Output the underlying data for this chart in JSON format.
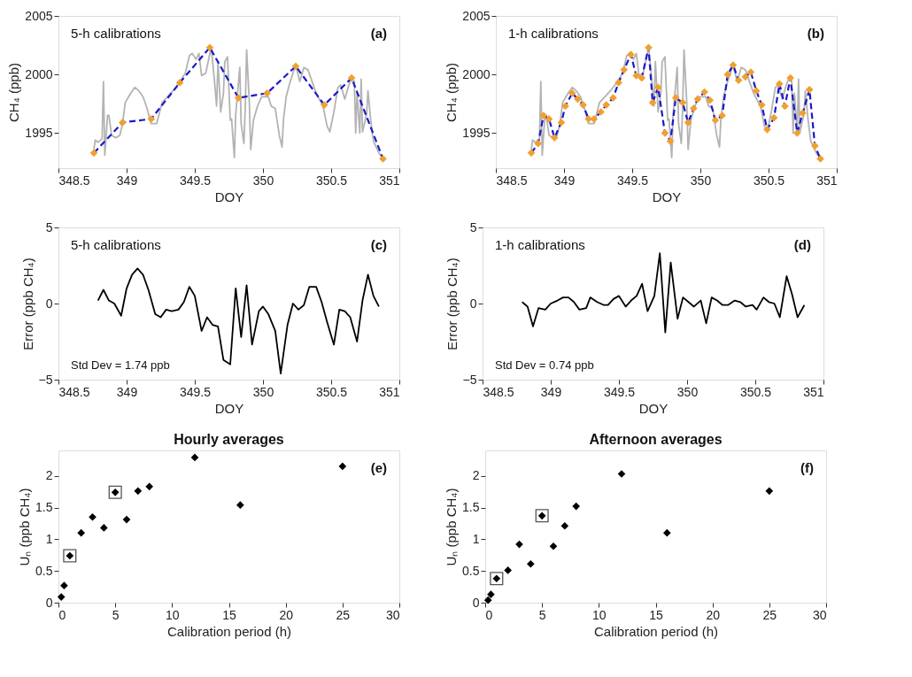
{
  "chart_data": [
    {
      "type": "line",
      "xlabel": "DOY",
      "ylabel": "CH₄ (ppb)",
      "annotations": [
        "5-h calibrations",
        "(a)"
      ],
      "xlim": [
        348.5,
        351
      ],
      "xticks": [
        348.5,
        349,
        349.5,
        350,
        350.5,
        351
      ],
      "ylim": [
        1992,
        2005
      ],
      "yticks": [
        1995,
        2000,
        2005
      ],
      "grid": false,
      "legend": false,
      "series": [
        {
          "color": "#b3b3b3",
          "x": [
            348.76,
            348.77,
            348.79,
            348.82,
            348.83,
            348.84,
            348.86,
            348.87,
            348.89,
            348.92,
            348.95,
            348.97,
            348.99,
            349.03,
            349.06,
            349.09,
            349.12,
            349.15,
            349.18,
            349.22,
            349.26,
            349.3,
            349.34,
            349.38,
            349.43,
            349.46,
            349.48,
            349.51,
            349.53,
            349.55,
            349.58,
            349.62,
            349.64,
            349.66,
            349.67,
            349.69,
            349.71,
            349.72,
            349.74,
            349.76,
            349.77,
            349.79,
            349.8,
            349.83,
            349.84,
            349.86,
            349.87,
            349.88,
            349.9,
            349.91,
            349.93,
            349.96,
            349.99,
            350.04,
            350.06,
            350.09,
            350.12,
            350.14,
            350.15,
            350.17,
            350.2,
            350.24,
            350.27,
            350.3,
            350.33,
            350.36,
            350.39,
            350.44,
            350.47,
            350.49,
            350.52,
            350.55,
            350.57,
            350.6,
            350.63,
            350.65,
            350.67,
            350.68,
            350.69,
            350.71,
            350.72,
            350.73,
            350.76,
            350.77,
            350.79,
            350.81,
            350.85,
            350.88
          ],
          "values": [
            1993.6,
            1994.4,
            1994.2,
            1994.5,
            1999.4,
            1993.1,
            1996.5,
            1996.5,
            1994.8,
            1994.6,
            1994.8,
            1995.8,
            1997.6,
            1998.4,
            1998.9,
            1998.6,
            1998.1,
            1997.1,
            1995.8,
            1995.8,
            1997.6,
            1998.1,
            1998.6,
            1999.2,
            2000.1,
            2001.6,
            2001.8,
            2001.3,
            2001.8,
            1999.9,
            2000.1,
            2002.3,
            2000.0,
            1997.3,
            2001.1,
            1996.8,
            1998.4,
            2001.1,
            2001.5,
            1996.1,
            1996.2,
            1992.9,
            1996.6,
            2000.6,
            1995.8,
            1994.1,
            1997.1,
            2002.1,
            1997.6,
            1993.6,
            1996.1,
            1997.3,
            1998.1,
            1998.1,
            1997.3,
            1997.1,
            1994.8,
            1993.8,
            1996.1,
            1998.1,
            1999.4,
            2000.8,
            1999.4,
            2000.6,
            2000.4,
            1999.4,
            1998.4,
            1997.3,
            1995.6,
            1995.1,
            1996.8,
            1998.9,
            1999.1,
            1997.9,
            1999.1,
            1999.7,
            1999.4,
            1995.0,
            1998.4,
            1995.0,
            1999.6,
            1995.1,
            1996.6,
            1998.6,
            1996.1,
            1994.3,
            1993.3,
            1992.8
          ]
        },
        {
          "color": "#1a1acc",
          "line_style": "dashed",
          "x": [
            348.76,
            348.97,
            349.18,
            349.39,
            349.61,
            349.82,
            350.03,
            350.24,
            350.45,
            350.65,
            350.88
          ],
          "values": [
            1993.3,
            1995.9,
            1996.2,
            1999.3,
            2002.3,
            1998.0,
            1998.4,
            2000.7,
            1997.4,
            1999.7,
            1992.8
          ]
        },
        {
          "type": "scatter",
          "marker": "diamond",
          "color": "#f0a030",
          "x": [
            348.76,
            348.97,
            349.18,
            349.39,
            349.61,
            349.82,
            350.03,
            350.24,
            350.45,
            350.65,
            350.88
          ],
          "values": [
            1993.3,
            1995.9,
            1996.2,
            1999.3,
            2002.3,
            1998.0,
            1998.4,
            2000.7,
            1997.4,
            1999.7,
            1992.8
          ]
        }
      ]
    },
    {
      "type": "line",
      "xlabel": "DOY",
      "ylabel": "CH₄ (ppb)",
      "annotations": [
        "1-h calibrations",
        "(b)"
      ],
      "xlim": [
        348.5,
        351
      ],
      "xticks": [
        348.5,
        349,
        349.5,
        350,
        350.5,
        351
      ],
      "ylim": [
        1992,
        2005
      ],
      "yticks": [
        1995,
        2000,
        2005
      ],
      "grid": false,
      "legend": false,
      "series": [
        {
          "color": "#b3b3b3",
          "x": [
            348.76,
            348.77,
            348.79,
            348.82,
            348.83,
            348.84,
            348.86,
            348.87,
            348.89,
            348.92,
            348.95,
            348.97,
            348.99,
            349.03,
            349.06,
            349.09,
            349.12,
            349.15,
            349.18,
            349.22,
            349.26,
            349.3,
            349.34,
            349.38,
            349.43,
            349.46,
            349.48,
            349.51,
            349.53,
            349.55,
            349.58,
            349.62,
            349.64,
            349.66,
            349.67,
            349.69,
            349.71,
            349.72,
            349.74,
            349.76,
            349.77,
            349.79,
            349.8,
            349.83,
            349.84,
            349.86,
            349.87,
            349.88,
            349.9,
            349.91,
            349.93,
            349.96,
            349.99,
            350.04,
            350.06,
            350.09,
            350.12,
            350.14,
            350.15,
            350.17,
            350.2,
            350.24,
            350.27,
            350.3,
            350.33,
            350.36,
            350.39,
            350.44,
            350.47,
            350.49,
            350.52,
            350.55,
            350.57,
            350.6,
            350.63,
            350.65,
            350.67,
            350.68,
            350.69,
            350.71,
            350.72,
            350.73,
            350.76,
            350.77,
            350.79,
            350.81,
            350.85,
            350.88
          ],
          "values": [
            1993.6,
            1994.4,
            1994.2,
            1994.5,
            1999.4,
            1993.1,
            1996.5,
            1996.5,
            1994.8,
            1994.6,
            1994.8,
            1995.8,
            1997.6,
            1998.4,
            1998.9,
            1998.6,
            1998.1,
            1997.1,
            1995.8,
            1995.8,
            1997.6,
            1998.1,
            1998.6,
            1999.2,
            2000.1,
            2001.6,
            2001.8,
            2001.3,
            2001.8,
            1999.9,
            2000.1,
            2002.3,
            2000.0,
            1997.3,
            2001.1,
            1996.8,
            1998.4,
            2001.1,
            2001.5,
            1996.1,
            1996.2,
            1992.9,
            1996.6,
            2000.6,
            1995.8,
            1994.1,
            1997.1,
            2002.1,
            1997.6,
            1993.6,
            1996.1,
            1997.3,
            1998.1,
            1998.1,
            1997.3,
            1997.1,
            1994.8,
            1993.8,
            1996.1,
            1998.1,
            1999.4,
            2000.8,
            1999.4,
            2000.6,
            2000.4,
            1999.4,
            1998.4,
            1997.3,
            1995.6,
            1995.1,
            1996.8,
            1998.9,
            1999.1,
            1997.9,
            1999.1,
            1999.7,
            1999.4,
            1995.0,
            1998.4,
            1995.0,
            1999.6,
            1995.1,
            1996.6,
            1998.6,
            1996.1,
            1994.3,
            1993.3,
            1992.8
          ]
        },
        {
          "color": "#1a1acc",
          "line_style": "dashed",
          "x": [
            348.76,
            348.81,
            348.85,
            348.89,
            348.93,
            348.98,
            349.01,
            349.06,
            349.1,
            349.14,
            349.18,
            349.22,
            349.27,
            349.31,
            349.36,
            349.4,
            349.44,
            349.49,
            349.53,
            349.57,
            349.62,
            349.65,
            349.69,
            349.74,
            349.78,
            349.82,
            349.87,
            349.91,
            349.95,
            349.98,
            350.03,
            350.07,
            350.11,
            350.16,
            350.2,
            350.24,
            350.28,
            350.33,
            350.37,
            350.41,
            350.45,
            350.49,
            350.54,
            350.58,
            350.62,
            350.66,
            350.71,
            350.75,
            350.8,
            350.84,
            350.88
          ],
          "values": [
            1993.3,
            1994.1,
            1996.5,
            1996.2,
            1994.6,
            1995.9,
            1997.3,
            1998.4,
            1997.9,
            1997.4,
            1996.2,
            1996.2,
            1996.8,
            1997.4,
            1998.0,
            1999.3,
            2000.4,
            2001.7,
            1999.9,
            1999.7,
            2002.3,
            1997.6,
            1998.9,
            1995.0,
            1994.3,
            1998.0,
            1997.6,
            1995.9,
            1997.1,
            1997.9,
            1998.5,
            1997.8,
            1996.1,
            1996.5,
            2000.0,
            2000.8,
            1999.5,
            1999.8,
            2000.2,
            1998.6,
            1997.4,
            1995.3,
            1996.3,
            1999.2,
            1997.3,
            1999.7,
            1995.0,
            1996.7,
            1998.7,
            1993.9,
            1992.8
          ]
        },
        {
          "type": "scatter",
          "marker": "diamond",
          "color": "#f0a030",
          "x": [
            348.76,
            348.81,
            348.85,
            348.89,
            348.93,
            348.98,
            349.01,
            349.06,
            349.1,
            349.14,
            349.18,
            349.22,
            349.27,
            349.31,
            349.36,
            349.4,
            349.44,
            349.49,
            349.53,
            349.57,
            349.62,
            349.65,
            349.69,
            349.74,
            349.78,
            349.82,
            349.87,
            349.91,
            349.95,
            349.98,
            350.03,
            350.07,
            350.11,
            350.16,
            350.2,
            350.24,
            350.28,
            350.33,
            350.37,
            350.41,
            350.45,
            350.49,
            350.54,
            350.58,
            350.62,
            350.66,
            350.71,
            350.75,
            350.8,
            350.84,
            350.88
          ],
          "values": [
            1993.3,
            1994.1,
            1996.5,
            1996.2,
            1994.6,
            1995.9,
            1997.3,
            1998.4,
            1997.9,
            1997.4,
            1996.2,
            1996.2,
            1996.8,
            1997.4,
            1998.0,
            1999.3,
            2000.4,
            2001.7,
            1999.9,
            1999.7,
            2002.3,
            1997.6,
            1998.9,
            1995.0,
            1994.3,
            1998.0,
            1997.6,
            1995.9,
            1997.1,
            1997.9,
            1998.5,
            1997.8,
            1996.1,
            1996.5,
            2000.0,
            2000.8,
            1999.5,
            1999.8,
            2000.2,
            1998.6,
            1997.4,
            1995.3,
            1996.3,
            1999.2,
            1997.3,
            1999.7,
            1995.0,
            1996.7,
            1998.7,
            1993.9,
            1992.8
          ]
        }
      ]
    },
    {
      "type": "line",
      "xlabel": "DOY",
      "ylabel": "Error (ppb CH₄)",
      "annotations": [
        "5-h calibrations",
        "Std Dev = 1.74 ppb",
        "(c)"
      ],
      "xlim": [
        348.5,
        351
      ],
      "xticks": [
        348.5,
        349,
        349.5,
        350,
        350.5,
        351
      ],
      "ylim": [
        -5,
        5
      ],
      "yticks": [
        -5,
        0,
        5
      ],
      "grid": false,
      "legend": false,
      "series": [
        {
          "color": "#000000",
          "x": [
            348.79,
            348.83,
            348.87,
            348.91,
            348.96,
            349.0,
            349.04,
            349.08,
            349.12,
            349.16,
            349.21,
            349.25,
            349.29,
            349.33,
            349.38,
            349.42,
            349.46,
            349.5,
            349.55,
            349.59,
            349.63,
            349.67,
            349.71,
            349.76,
            349.8,
            349.84,
            349.88,
            349.92,
            349.97,
            350.0,
            350.04,
            350.09,
            350.13,
            350.18,
            350.22,
            350.26,
            350.3,
            350.34,
            350.39,
            350.43,
            350.47,
            350.52,
            350.56,
            350.6,
            350.64,
            350.69,
            350.73,
            350.77,
            350.81,
            350.85
          ],
          "values": [
            0.2,
            0.9,
            0.2,
            0.0,
            -0.8,
            1.0,
            1.9,
            2.3,
            1.9,
            0.9,
            -0.7,
            -0.9,
            -0.4,
            -0.5,
            -0.4,
            0.1,
            1.1,
            0.5,
            -1.8,
            -0.9,
            -1.4,
            -1.5,
            -3.7,
            -4.0,
            1.0,
            -2.2,
            1.2,
            -2.7,
            -0.5,
            -0.2,
            -0.7,
            -1.8,
            -4.6,
            -1.4,
            0.0,
            -0.4,
            -0.1,
            1.1,
            1.1,
            0.1,
            -1.2,
            -2.7,
            -0.4,
            -0.5,
            -0.9,
            -2.5,
            0.2,
            1.9,
            0.5,
            -0.2
          ]
        }
      ]
    },
    {
      "type": "line",
      "xlabel": "DOY",
      "ylabel": "Error (ppb CH₄)",
      "annotations": [
        "1-h calibrations",
        "Std Dev = 0.74 ppb",
        "(d)"
      ],
      "xlim": [
        348.5,
        351
      ],
      "xticks": [
        348.5,
        349,
        349.5,
        350,
        350.5,
        351
      ],
      "ylim": [
        -5,
        5
      ],
      "yticks": [
        -5,
        0,
        5
      ],
      "grid": false,
      "legend": false,
      "series": [
        {
          "color": "#000000",
          "x": [
            348.79,
            348.83,
            348.87,
            348.91,
            348.96,
            349.0,
            349.05,
            349.09,
            349.13,
            349.17,
            349.21,
            349.26,
            349.29,
            349.34,
            349.39,
            349.42,
            349.46,
            349.5,
            349.55,
            349.59,
            349.63,
            349.67,
            349.71,
            349.76,
            349.8,
            349.84,
            349.88,
            349.93,
            349.97,
            350.01,
            350.05,
            350.1,
            350.14,
            350.18,
            350.22,
            350.26,
            350.3,
            350.35,
            350.39,
            350.43,
            350.48,
            350.51,
            350.56,
            350.6,
            350.64,
            350.68,
            350.73,
            350.77,
            350.81,
            350.86
          ],
          "values": [
            0.1,
            -0.2,
            -1.5,
            -0.3,
            -0.4,
            0.0,
            0.2,
            0.4,
            0.4,
            0.1,
            -0.4,
            -0.3,
            0.4,
            0.1,
            -0.1,
            -0.1,
            0.3,
            0.5,
            -0.2,
            0.2,
            0.5,
            1.3,
            -0.5,
            0.5,
            3.3,
            -1.9,
            2.7,
            -1.0,
            0.4,
            0.1,
            -0.2,
            0.2,
            -1.3,
            0.4,
            0.2,
            -0.1,
            -0.1,
            0.2,
            0.1,
            -0.2,
            -0.1,
            -0.4,
            0.4,
            0.1,
            0.0,
            -0.9,
            1.8,
            0.6,
            -0.9,
            -0.1
          ]
        }
      ]
    },
    {
      "type": "scatter",
      "title": "Hourly averages",
      "xlabel": "Calibration period (h)",
      "ylabel": "Uₙ (ppb CH₄)",
      "annotations": [
        "(e)"
      ],
      "xlim": [
        0,
        30
      ],
      "xticks": [
        0,
        5,
        10,
        15,
        20,
        25,
        30
      ],
      "ylim": [
        0,
        2.4
      ],
      "yticks": [
        0,
        0.5,
        1,
        1.5,
        2
      ],
      "grid": false,
      "legend": false,
      "series": [
        {
          "marker": "diamond",
          "color": "#000000",
          "x": [
            0.25,
            0.5,
            1,
            2,
            3,
            4,
            5,
            6,
            7,
            8,
            12,
            16,
            25
          ],
          "values": [
            0.09,
            0.27,
            0.74,
            1.1,
            1.35,
            1.18,
            1.74,
            1.31,
            1.76,
            1.83,
            2.29,
            1.54,
            2.15
          ]
        },
        {
          "marker": "square",
          "color": "#555555",
          "x": [
            1,
            5
          ],
          "values": [
            0.74,
            1.74
          ]
        }
      ]
    },
    {
      "type": "scatter",
      "title": "Afternoon averages",
      "xlabel": "Calibration period (h)",
      "ylabel": "Uₙ (ppb CH₄)",
      "annotations": [
        "(f)"
      ],
      "xlim": [
        0,
        30
      ],
      "xticks": [
        0,
        5,
        10,
        15,
        20,
        25,
        30
      ],
      "ylim": [
        0,
        2.4
      ],
      "yticks": [
        0,
        0.5,
        1,
        1.5,
        2
      ],
      "grid": false,
      "legend": false,
      "series": [
        {
          "marker": "diamond",
          "color": "#000000",
          "x": [
            0.25,
            0.5,
            1,
            2,
            3,
            4,
            5,
            6,
            7,
            8,
            12,
            16,
            25
          ],
          "values": [
            0.04,
            0.13,
            0.38,
            0.51,
            0.92,
            0.61,
            1.37,
            0.89,
            1.21,
            1.52,
            2.03,
            1.1,
            1.76
          ]
        },
        {
          "marker": "square",
          "color": "#555555",
          "x": [
            1,
            5
          ],
          "values": [
            0.38,
            1.37
          ]
        }
      ]
    }
  ]
}
